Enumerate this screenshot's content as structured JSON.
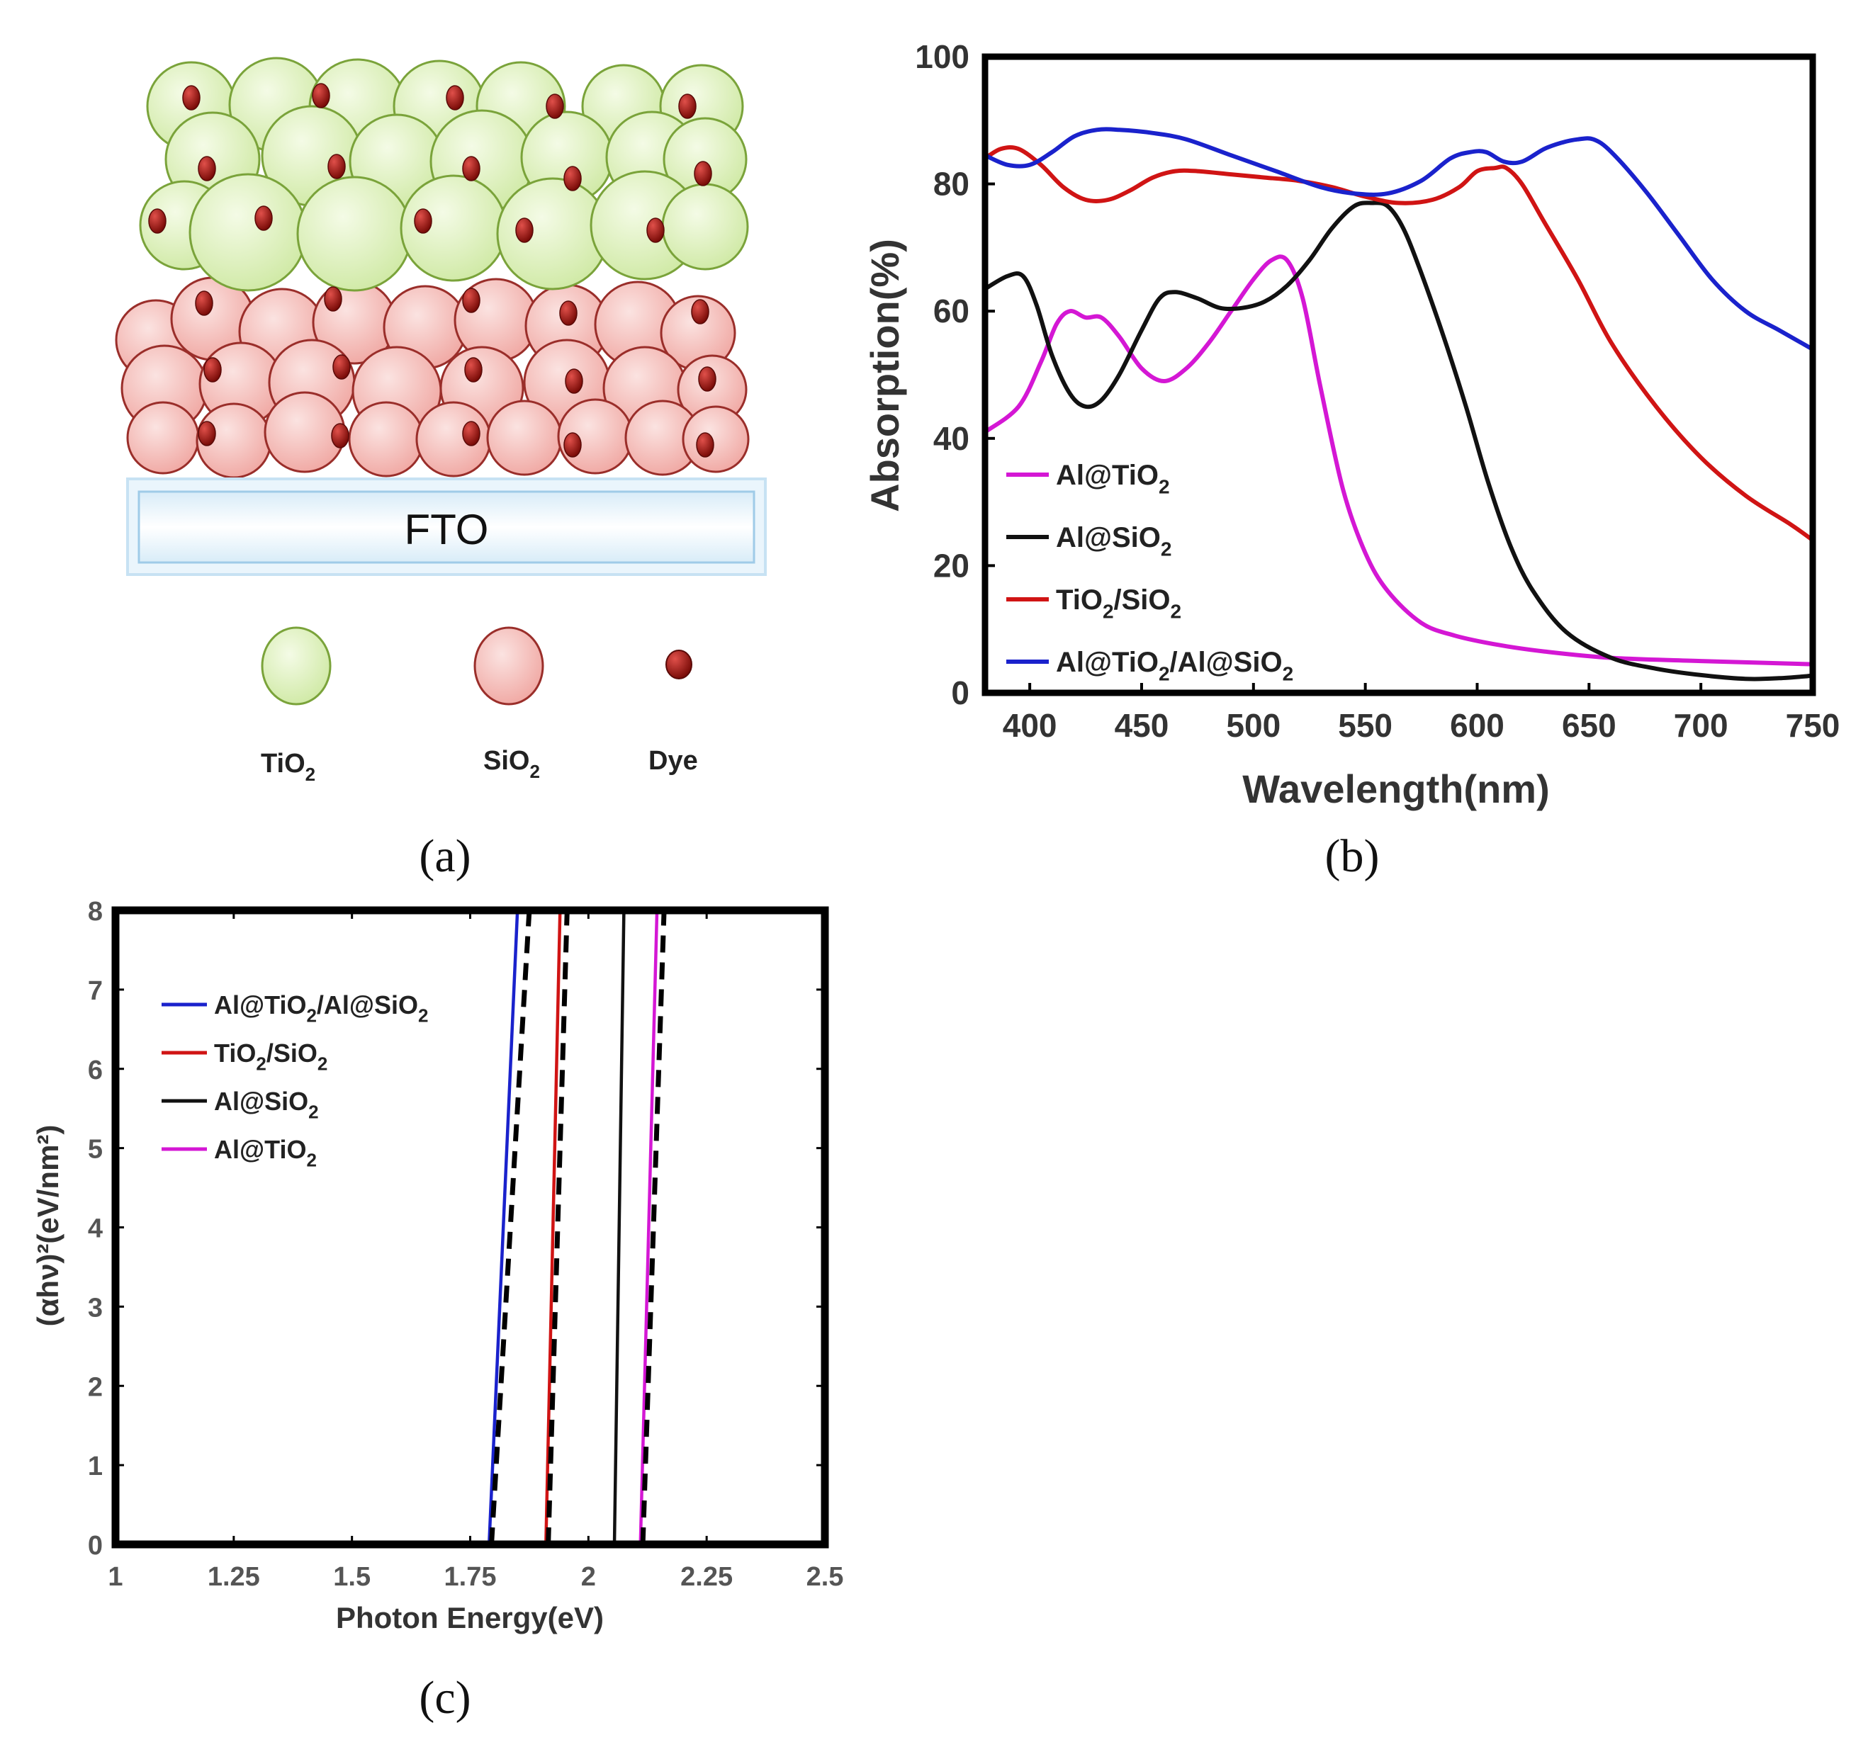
{
  "panel_a": {
    "caption": "(a)",
    "substrate_label": "FTO",
    "legend": [
      {
        "name": "tio2",
        "label": "TiO",
        "sub": "2",
        "fill": "#d9f0b4",
        "stroke": "#7aa33a"
      },
      {
        "name": "sio2",
        "label": "SiO",
        "sub": "2",
        "fill": "#f7b8b4",
        "stroke": "#9a2e2a"
      },
      {
        "name": "dye",
        "label": "Dye",
        "sub": "",
        "fill": "#a01a14",
        "stroke": "#5a0a08"
      }
    ]
  },
  "chart_data": [
    {
      "id": "b",
      "caption": "(b)",
      "type": "line",
      "title": "",
      "xlabel": "Wavelength(nm)",
      "ylabel": "Absorption(%)",
      "xlim": [
        380,
        750
      ],
      "ylim": [
        0,
        100
      ],
      "xticks": [
        400,
        450,
        500,
        550,
        600,
        650,
        700,
        750
      ],
      "yticks": [
        0,
        20,
        40,
        60,
        80,
        100
      ],
      "legend_position": "bottom-left",
      "series": [
        {
          "name": "Al@TiO2",
          "label": "Al@TiO",
          "sub": "2",
          "rest": "",
          "color": "#d417d4",
          "x": [
            380,
            395,
            405,
            412,
            418,
            425,
            432,
            440,
            450,
            460,
            470,
            480,
            490,
            500,
            508,
            515,
            522,
            530,
            540,
            550,
            560,
            575,
            590,
            610,
            630,
            660,
            700,
            750
          ],
          "y": [
            41,
            45,
            52,
            58,
            60,
            59,
            59,
            56,
            51,
            49,
            51,
            55,
            60,
            65,
            68,
            68,
            62,
            48,
            32,
            22,
            16,
            11,
            9,
            7.5,
            6.5,
            5.5,
            5,
            4.5
          ]
        },
        {
          "name": "Al@SiO2",
          "label": "Al@SiO",
          "sub": "2",
          "rest": "",
          "color": "#111111",
          "x": [
            380,
            390,
            397,
            403,
            410,
            418,
            425,
            432,
            440,
            450,
            458,
            465,
            475,
            485,
            495,
            505,
            515,
            525,
            535,
            545,
            553,
            560,
            567,
            575,
            585,
            595,
            605,
            615,
            625,
            640,
            660,
            680,
            700,
            720,
            735,
            750
          ],
          "y": [
            63.5,
            65.5,
            65.5,
            61,
            53,
            47,
            45,
            46,
            50,
            57,
            62,
            63,
            62,
            60.5,
            60.5,
            61.5,
            64,
            68,
            73,
            76.5,
            77,
            76.5,
            73,
            66,
            56,
            45,
            33,
            23,
            16,
            9.5,
            5.5,
            3.8,
            2.8,
            2.2,
            2.3,
            2.7
          ]
        },
        {
          "name": "TiO2/SiO2",
          "label": "TiO",
          "sub": "2",
          "rest": "/SiO",
          "sub2": "2",
          "color": "#d01414",
          "x": [
            380,
            387,
            395,
            405,
            415,
            425,
            435,
            445,
            455,
            465,
            475,
            490,
            505,
            520,
            535,
            550,
            565,
            580,
            592,
            600,
            608,
            613,
            620,
            630,
            645,
            660,
            680,
            700,
            720,
            740,
            750
          ],
          "y": [
            84,
            85.5,
            85.5,
            83,
            79.5,
            77.5,
            77.5,
            79,
            81,
            82,
            82,
            81.5,
            81,
            80.5,
            79.5,
            78,
            77,
            77.5,
            79.5,
            82,
            82.5,
            82.5,
            80,
            74,
            65,
            55,
            45,
            37,
            31,
            26.5,
            24
          ]
        },
        {
          "name": "Al@TiO2/Al@SiO2",
          "label": "Al@TiO",
          "sub": "2",
          "rest": "/Al@SiO",
          "sub2": "2",
          "color": "#1a22cc",
          "x": [
            380,
            390,
            400,
            410,
            420,
            430,
            440,
            455,
            470,
            490,
            510,
            530,
            545,
            560,
            575,
            588,
            597,
            604,
            612,
            620,
            630,
            638,
            645,
            652,
            660,
            675,
            690,
            705,
            720,
            735,
            750
          ],
          "y": [
            84.5,
            83,
            83,
            85,
            87.5,
            88.5,
            88.5,
            88,
            87,
            84.5,
            82,
            79.5,
            78.5,
            78.5,
            80.5,
            84,
            85,
            85,
            83.5,
            83.5,
            85.5,
            86.5,
            87,
            87,
            85,
            79,
            72,
            65,
            60,
            57,
            54
          ]
        }
      ]
    },
    {
      "id": "c",
      "caption": "(c)",
      "type": "line",
      "title": "",
      "xlabel": "Photon Energy(eV)",
      "ylabel": "(αhν)²(eV/nm²)",
      "xlim": [
        1,
        2.5
      ],
      "ylim": [
        0,
        8
      ],
      "xticks": [
        1,
        1.25,
        1.5,
        1.75,
        2,
        2.25,
        2.5
      ],
      "xtick_labels": [
        "1",
        "1.25",
        "1.5",
        "1.75",
        "2",
        "2.25",
        "2.5"
      ],
      "yticks": [
        0,
        1,
        2,
        3,
        4,
        5,
        6,
        7,
        8
      ],
      "legend_position": "top-left",
      "series": [
        {
          "name": "Al@TiO2/Al@SiO2",
          "label": "Al@TiO",
          "sub": "2",
          "rest": "/Al@SiO",
          "sub2": "2",
          "color": "#1a22cc",
          "x": [
            1.0,
            1.79,
            1.85
          ],
          "y": [
            0,
            0,
            8
          ]
        },
        {
          "name": "TiO2/SiO2",
          "label": "TiO",
          "sub": "2",
          "rest": "/SiO",
          "sub2": "2",
          "color": "#d01414",
          "x": [
            1.0,
            1.91,
            1.94
          ],
          "y": [
            0,
            0,
            8
          ]
        },
        {
          "name": "Al@SiO2",
          "label": "Al@SiO",
          "sub": "2",
          "rest": "",
          "color": "#111111",
          "x": [
            1.0,
            2.055,
            2.075
          ],
          "y": [
            0,
            0,
            8
          ]
        },
        {
          "name": "Al@TiO2",
          "label": "Al@TiO",
          "sub": "2",
          "rest": "",
          "color": "#d417d4",
          "x": [
            1.0,
            2.11,
            2.145
          ],
          "y": [
            0,
            0,
            8
          ]
        }
      ],
      "fit_lines": [
        {
          "name": "fit-al-tio2-al-sio2",
          "x": [
            1.795,
            1.875
          ],
          "y": [
            0,
            8
          ]
        },
        {
          "name": "fit-tio2-sio2",
          "x": [
            1.915,
            1.955
          ],
          "y": [
            0,
            8
          ]
        },
        {
          "name": "fit-al-tio2",
          "x": [
            2.115,
            2.16
          ],
          "y": [
            0,
            8
          ]
        }
      ]
    }
  ]
}
